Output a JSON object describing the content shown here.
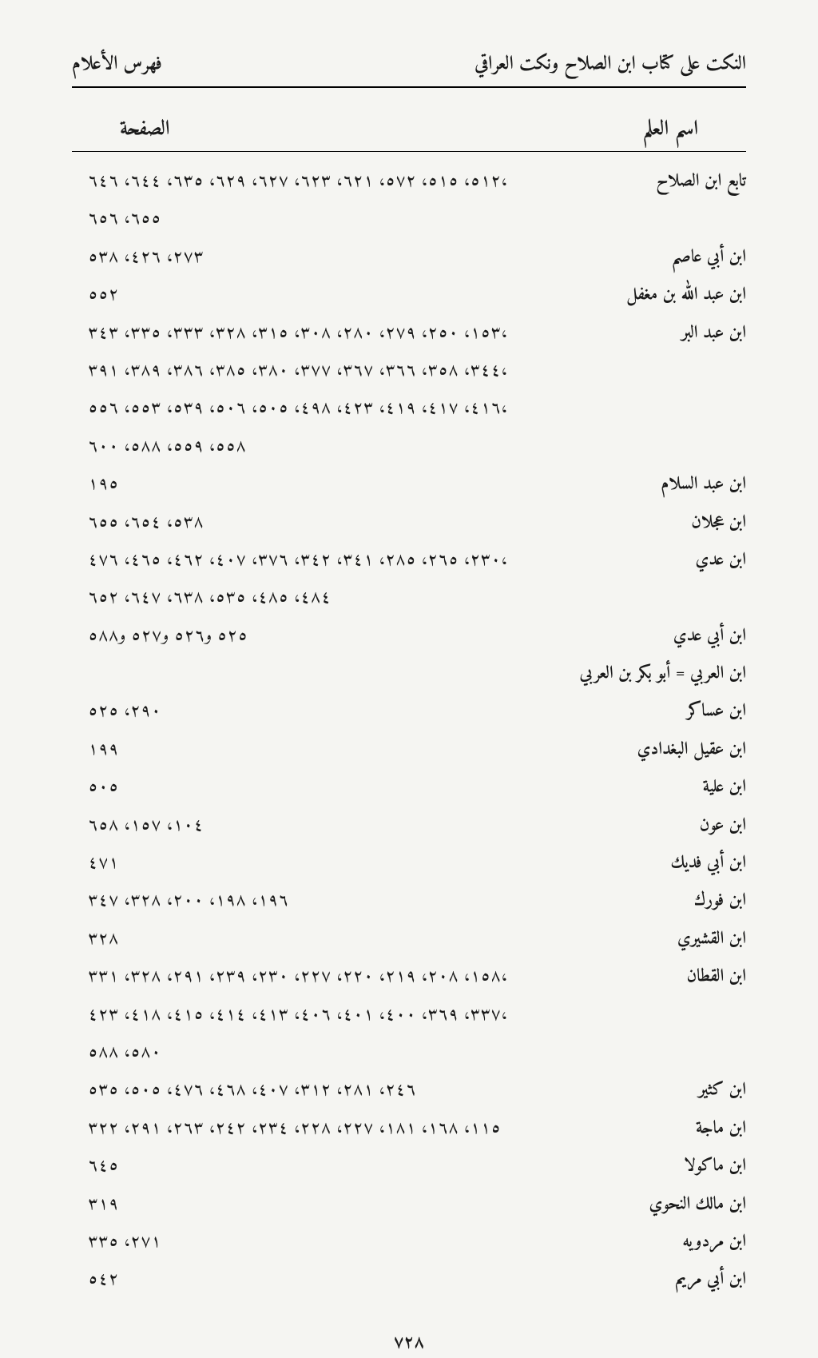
{
  "header": {
    "book_title": "النكت على كتاب ابن الصلاح ونكت العراقي",
    "section_title": "فهرس الأعلام"
  },
  "table_header": {
    "name_col": "اسم العلم",
    "page_col": "الصفحة"
  },
  "entries": [
    {
      "name": "تابع ابن الصلاح",
      "lines": [
        "٥١٢، ٥١٥، ٥٧٢، ٦٢١، ٦٢٣، ٦٢٧، ٦٢٩، ٦٣٥، ٦٤٤، ٦٤٦،",
        "٦٥٥، ٦٥٦"
      ]
    },
    {
      "name": "ابن أبي عاصم",
      "lines": [
        "٢٧٣، ٤٢٦، ٥٣٨"
      ]
    },
    {
      "name": "ابن عبد الله بن مغفل",
      "lines": [
        "٥٥٢"
      ]
    },
    {
      "name": "ابن عبد البر",
      "lines": [
        "١٥٣، ٢٥٠، ٢٧٩، ٢٨٠، ٣٠٨، ٣١٥، ٣٢٨، ٣٣٣، ٣٣٥، ٣٤٣،",
        "٣٤٤، ٣٥٨، ٣٦٦، ٣٦٧، ٣٧٧، ٣٨٠، ٣٨٥، ٣٨٦، ٣٨٩، ٣٩١،",
        "٤١٦، ٤١٧، ٤١٩، ٤٢٣، ٤٩٨، ٥٠٥، ٥٠٦، ٥٣٩، ٥٥٣، ٥٥٦،",
        "٥٥٨، ٥٥٩، ٥٨٨، ٦٠٠"
      ]
    },
    {
      "name": "ابن عبد السلام",
      "lines": [
        "١٩٥"
      ]
    },
    {
      "name": "ابن عجلان",
      "lines": [
        "٥٣٨، ٦٥٤، ٦٥٥"
      ]
    },
    {
      "name": "ابن عدي",
      "lines": [
        "٢٣٠، ٢٦٥، ٢٨٥، ٣٤١، ٣٤٢، ٣٧٦، ٤٠٧، ٤٦٢، ٤٦٥، ٤٧٦،",
        "٤٨٤، ٤٨٥، ٥٣٥، ٦٣٨، ٦٤٧، ٦٥٢"
      ]
    },
    {
      "name": "ابن أبي عدي",
      "lines": [
        "٥٢٥ و٥٢٦ و٥٢٧ و٥٨٨"
      ]
    },
    {
      "name": "ابن العربي = أبو بكر بن العربي",
      "lines": [
        ""
      ]
    },
    {
      "name": "ابن عساكر",
      "lines": [
        "٢٩٠، ٥٢٥"
      ]
    },
    {
      "name": "ابن عقيل البغدادي",
      "lines": [
        "١٩٩"
      ]
    },
    {
      "name": "ابن علية",
      "lines": [
        "٥٠٥"
      ]
    },
    {
      "name": "ابن عون",
      "lines": [
        "١٠٤، ١٥٧، ٦٥٨"
      ]
    },
    {
      "name": "ابن أبي فديك",
      "lines": [
        "٤٧١"
      ]
    },
    {
      "name": "ابن فورك",
      "lines": [
        "١٩٦، ١٩٨، ٢٠٠، ٣٢٨، ٣٤٧"
      ]
    },
    {
      "name": "ابن القشيري",
      "lines": [
        "٣٢٨"
      ]
    },
    {
      "name": "ابن القطان",
      "lines": [
        "١٥٨، ٢٠٨، ٢١٩، ٢٢٠، ٢٢٧، ٢٣٠، ٢٣٩، ٢٩١، ٣٢٨، ٣٣١،",
        "٣٣٧، ٣٦٩، ٤٠٠، ٤٠١، ٤٠٦، ٤١٣، ٤١٤، ٤١٥، ٤١٨، ٤٢٣،",
        "٥٨٠، ٥٨٨"
      ]
    },
    {
      "name": "ابن كثير",
      "lines": [
        "٢٤٦، ٢٨١، ٣١٢، ٤٠٧، ٤٦٨، ٤٧٦، ٥٠٥، ٥٣٥"
      ]
    },
    {
      "name": "ابن ماجة",
      "lines": [
        "١١٥، ١٦٨، ١٨١، ٢٢٧، ٢٢٨، ٢٣٤، ٢٤٢، ٢٦٣، ٢٩١، ٣٢٢"
      ]
    },
    {
      "name": "ابن ماكولا",
      "lines": [
        "٦٤٥"
      ]
    },
    {
      "name": "ابن مالك النحوي",
      "lines": [
        "٣١٩"
      ]
    },
    {
      "name": "ابن مردويه",
      "lines": [
        "٢٧١، ٣٣٥"
      ]
    },
    {
      "name": "ابن أبي مريم",
      "lines": [
        "٥٤٢"
      ]
    }
  ],
  "page_number": "٧٢٨"
}
